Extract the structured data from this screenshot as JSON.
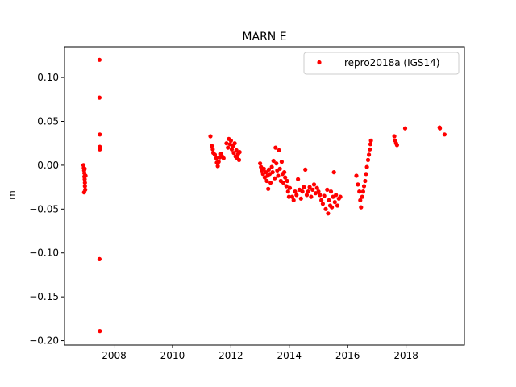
{
  "chart_data": {
    "type": "scatter",
    "title": "MARN E",
    "xlabel": "",
    "ylabel": "m",
    "xlim": [
      2006.3,
      2020.0
    ],
    "ylim": [
      -0.205,
      0.135
    ],
    "grid": false,
    "legend_position": "top-right",
    "xticks": [
      2008,
      2010,
      2012,
      2014,
      2016,
      2018
    ],
    "xtick_labels": [
      "2008",
      "2010",
      "2012",
      "2014",
      "2016",
      "2018"
    ],
    "yticks": [
      0.1,
      0.05,
      0.0,
      -0.05,
      -0.1,
      -0.15,
      -0.2
    ],
    "ytick_labels": [
      "0.10",
      "0.05",
      "0.00",
      "−0.05",
      "−0.10",
      "−0.15",
      "−0.20"
    ],
    "series": [
      {
        "name": "repro2018a (IGS14)",
        "color": "#ff0000",
        "points": [
          [
            2006.95,
            0.0
          ],
          [
            2006.96,
            -0.003
          ],
          [
            2006.97,
            -0.006
          ],
          [
            2006.98,
            -0.009
          ],
          [
            2006.98,
            -0.013
          ],
          [
            2006.99,
            -0.016
          ],
          [
            2007.0,
            -0.02
          ],
          [
            2007.0,
            -0.024
          ],
          [
            2007.01,
            -0.028
          ],
          [
            2006.97,
            -0.031
          ],
          [
            2007.02,
            -0.012
          ],
          [
            2006.99,
            -0.004
          ],
          [
            2007.5,
            0.12
          ],
          [
            2007.5,
            0.077
          ],
          [
            2007.51,
            0.035
          ],
          [
            2007.51,
            0.021
          ],
          [
            2007.51,
            0.018
          ],
          [
            2007.5,
            -0.107
          ],
          [
            2007.51,
            -0.189
          ],
          [
            2011.3,
            0.033
          ],
          [
            2011.35,
            0.022
          ],
          [
            2011.38,
            0.018
          ],
          [
            2011.4,
            0.014
          ],
          [
            2011.45,
            0.012
          ],
          [
            2011.5,
            0.008
          ],
          [
            2011.52,
            0.003
          ],
          [
            2011.55,
            -0.001
          ],
          [
            2011.58,
            0.004
          ],
          [
            2011.62,
            0.009
          ],
          [
            2011.66,
            0.013
          ],
          [
            2011.7,
            0.01
          ],
          [
            2011.75,
            0.008
          ],
          [
            2011.85,
            0.025
          ],
          [
            2011.9,
            0.02
          ],
          [
            2011.93,
            0.03
          ],
          [
            2011.97,
            0.024
          ],
          [
            2012.0,
            0.028
          ],
          [
            2012.03,
            0.018
          ],
          [
            2012.07,
            0.022
          ],
          [
            2012.1,
            0.014
          ],
          [
            2012.13,
            0.025
          ],
          [
            2012.16,
            0.01
          ],
          [
            2012.19,
            0.017
          ],
          [
            2012.22,
            0.008
          ],
          [
            2012.25,
            0.013
          ],
          [
            2012.28,
            0.006
          ],
          [
            2012.3,
            0.015
          ],
          [
            2013.0,
            0.002
          ],
          [
            2013.03,
            -0.002
          ],
          [
            2013.06,
            -0.006
          ],
          [
            2013.1,
            -0.01
          ],
          [
            2013.13,
            -0.004
          ],
          [
            2013.16,
            -0.014
          ],
          [
            2013.2,
            -0.008
          ],
          [
            2013.23,
            -0.018
          ],
          [
            2013.26,
            -0.012
          ],
          [
            2013.28,
            -0.027
          ],
          [
            2013.3,
            -0.005
          ],
          [
            2013.33,
            -0.01
          ],
          [
            2013.36,
            -0.02
          ],
          [
            2013.4,
            -0.002
          ],
          [
            2013.43,
            -0.008
          ],
          [
            2013.46,
            0.005
          ],
          [
            2013.5,
            -0.015
          ],
          [
            2013.53,
            0.02
          ],
          [
            2013.56,
            0.002
          ],
          [
            2013.59,
            -0.006
          ],
          [
            2013.62,
            -0.012
          ],
          [
            2013.65,
            0.017
          ],
          [
            2013.68,
            -0.004
          ],
          [
            2013.71,
            -0.018
          ],
          [
            2013.74,
            0.004
          ],
          [
            2013.77,
            -0.01
          ],
          [
            2013.8,
            -0.02
          ],
          [
            2013.83,
            -0.008
          ],
          [
            2013.86,
            -0.014
          ],
          [
            2013.9,
            -0.024
          ],
          [
            2013.93,
            -0.018
          ],
          [
            2013.96,
            -0.03
          ],
          [
            2013.99,
            -0.036
          ],
          [
            2014.02,
            -0.026
          ],
          [
            2014.1,
            -0.036
          ],
          [
            2014.15,
            -0.04
          ],
          [
            2014.2,
            -0.03
          ],
          [
            2014.25,
            -0.034
          ],
          [
            2014.3,
            -0.016
          ],
          [
            2014.35,
            -0.028
          ],
          [
            2014.4,
            -0.038
          ],
          [
            2014.45,
            -0.03
          ],
          [
            2014.5,
            -0.025
          ],
          [
            2014.55,
            -0.005
          ],
          [
            2014.6,
            -0.034
          ],
          [
            2014.65,
            -0.03
          ],
          [
            2014.7,
            -0.025
          ],
          [
            2014.75,
            -0.036
          ],
          [
            2014.8,
            -0.028
          ],
          [
            2014.85,
            -0.022
          ],
          [
            2014.9,
            -0.032
          ],
          [
            2014.95,
            -0.026
          ],
          [
            2015.0,
            -0.03
          ],
          [
            2015.05,
            -0.034
          ],
          [
            2015.1,
            -0.04
          ],
          [
            2015.15,
            -0.044
          ],
          [
            2015.2,
            -0.035
          ],
          [
            2015.25,
            -0.05
          ],
          [
            2015.3,
            -0.028
          ],
          [
            2015.33,
            -0.055
          ],
          [
            2015.36,
            -0.04
          ],
          [
            2015.4,
            -0.046
          ],
          [
            2015.43,
            -0.03
          ],
          [
            2015.46,
            -0.048
          ],
          [
            2015.5,
            -0.036
          ],
          [
            2015.53,
            -0.008
          ],
          [
            2015.56,
            -0.042
          ],
          [
            2015.6,
            -0.034
          ],
          [
            2015.65,
            -0.046
          ],
          [
            2015.7,
            -0.038
          ],
          [
            2015.75,
            -0.036
          ],
          [
            2016.3,
            -0.012
          ],
          [
            2016.35,
            -0.022
          ],
          [
            2016.4,
            -0.03
          ],
          [
            2016.43,
            -0.04
          ],
          [
            2016.46,
            -0.048
          ],
          [
            2016.5,
            -0.036
          ],
          [
            2016.53,
            -0.03
          ],
          [
            2016.56,
            -0.024
          ],
          [
            2016.6,
            -0.018
          ],
          [
            2016.63,
            -0.01
          ],
          [
            2016.66,
            -0.002
          ],
          [
            2016.7,
            0.006
          ],
          [
            2016.73,
            0.012
          ],
          [
            2016.76,
            0.018
          ],
          [
            2016.78,
            0.024
          ],
          [
            2016.8,
            0.028
          ],
          [
            2017.6,
            0.033
          ],
          [
            2017.63,
            0.028
          ],
          [
            2017.66,
            0.025
          ],
          [
            2017.69,
            0.023
          ],
          [
            2017.97,
            0.042
          ],
          [
            2019.15,
            0.043
          ],
          [
            2019.16,
            0.042
          ],
          [
            2019.32,
            0.035
          ]
        ]
      }
    ]
  }
}
